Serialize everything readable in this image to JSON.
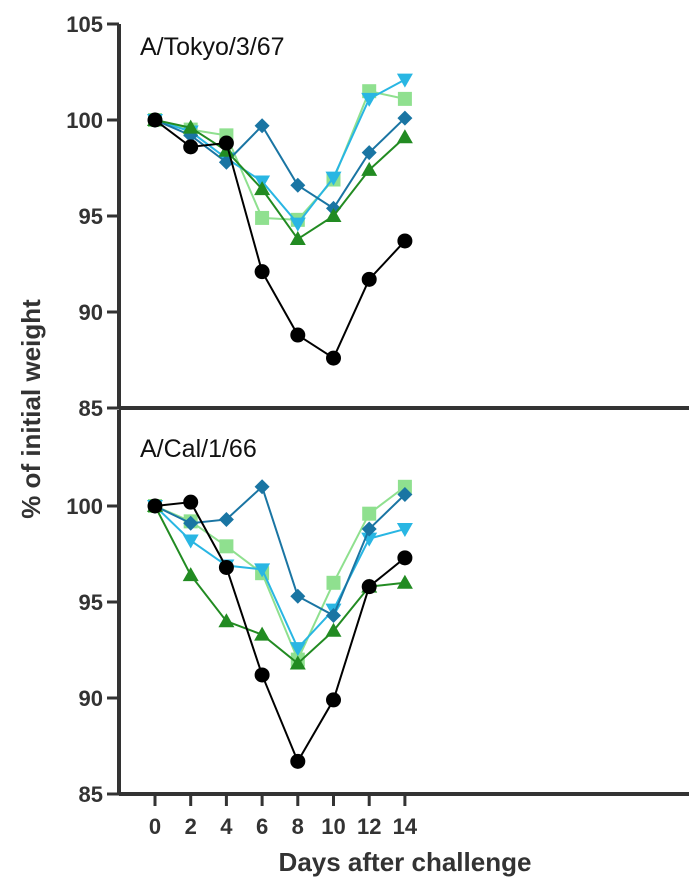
{
  "chart_data": [
    {
      "type": "line",
      "title": "A/Tokyo/3/67",
      "xlabel": "Days after challenge",
      "ylabel": "% of initial weight",
      "x": [
        0,
        2,
        4,
        6,
        8,
        10,
        12,
        14
      ],
      "ylim": [
        85,
        105
      ],
      "yticks": [
        85,
        90,
        95,
        100,
        105
      ],
      "grid": false,
      "series": [
        {
          "marker": "square",
          "color": "#8fe08f",
          "values": [
            100.0,
            99.5,
            99.2,
            94.9,
            94.8,
            96.9,
            101.5,
            101.1
          ]
        },
        {
          "marker": "triangle-down",
          "color": "#29b6e3",
          "values": [
            100.0,
            99.4,
            98.0,
            96.8,
            94.6,
            97.0,
            101.1,
            102.1
          ]
        },
        {
          "marker": "diamond",
          "color": "#1a75a3",
          "values": [
            100.0,
            99.2,
            97.8,
            99.7,
            96.6,
            95.4,
            98.3,
            100.1
          ]
        },
        {
          "marker": "triangle-up",
          "color": "#228b22",
          "values": [
            100.0,
            99.6,
            98.4,
            96.4,
            93.8,
            95.0,
            97.4,
            99.1
          ]
        },
        {
          "marker": "circle",
          "color": "#000000",
          "values": [
            100.0,
            98.6,
            98.8,
            92.1,
            88.8,
            87.6,
            91.7,
            93.7
          ]
        }
      ]
    },
    {
      "type": "line",
      "title": "A/Cal/1/66",
      "xlabel": "Days after challenge",
      "ylabel": "% of initial weight",
      "x": [
        0,
        2,
        4,
        6,
        8,
        10,
        12,
        14
      ],
      "ylim": [
        85,
        105
      ],
      "yticks": [
        85,
        90,
        95,
        100
      ],
      "grid": false,
      "series": [
        {
          "marker": "square",
          "color": "#8fe08f",
          "values": [
            100.0,
            99.2,
            97.9,
            96.5,
            92.0,
            96.0,
            99.6,
            101.0
          ]
        },
        {
          "marker": "triangle-down",
          "color": "#29b6e3",
          "values": [
            100.0,
            98.2,
            96.9,
            96.7,
            92.6,
            94.6,
            98.3,
            98.8
          ]
        },
        {
          "marker": "diamond",
          "color": "#1a75a3",
          "values": [
            100.0,
            99.1,
            99.3,
            101.0,
            95.3,
            94.3,
            98.8,
            100.6
          ]
        },
        {
          "marker": "triangle-up",
          "color": "#228b22",
          "values": [
            100.0,
            96.4,
            94.0,
            93.3,
            91.8,
            93.5,
            95.8,
            96.0
          ]
        },
        {
          "marker": "circle",
          "color": "#000000",
          "values": [
            100.0,
            100.2,
            96.8,
            91.2,
            86.7,
            89.9,
            95.8,
            97.3
          ]
        }
      ]
    }
  ]
}
